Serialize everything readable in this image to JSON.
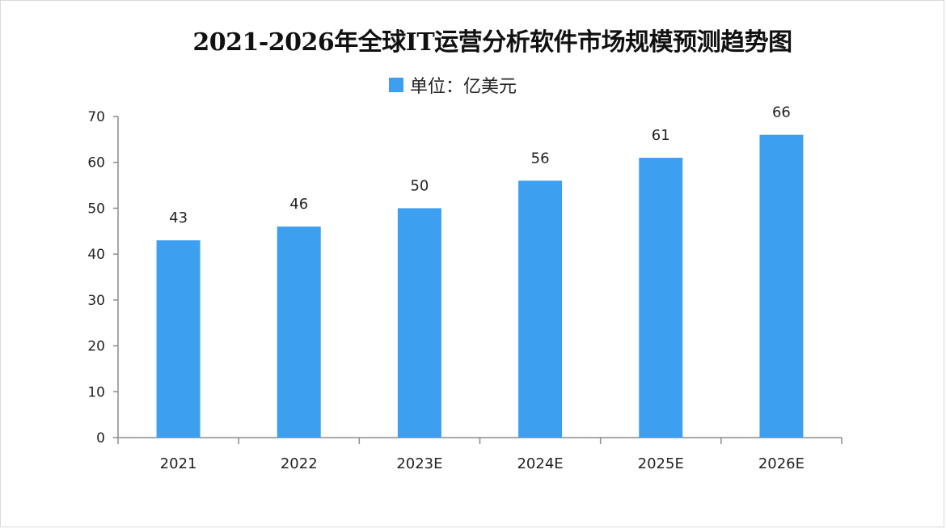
{
  "chart_data": {
    "type": "bar",
    "title": "2021-2026年全球IT运营分析软件市场规模预测趋势图",
    "legend": "单位：亿美元",
    "categories": [
      "2021",
      "2022",
      "2023E",
      "2024E",
      "2025E",
      "2026E"
    ],
    "values": [
      43,
      46,
      50,
      56,
      61,
      66
    ],
    "data_labels": [
      "43",
      "46",
      "50",
      "56",
      "61",
      "66"
    ],
    "y_ticks": [
      "0",
      "10",
      "20",
      "30",
      "40",
      "50",
      "60",
      "70"
    ],
    "ylim": [
      0,
      70
    ],
    "grid": false,
    "bar_color": "#3d9ff0"
  }
}
